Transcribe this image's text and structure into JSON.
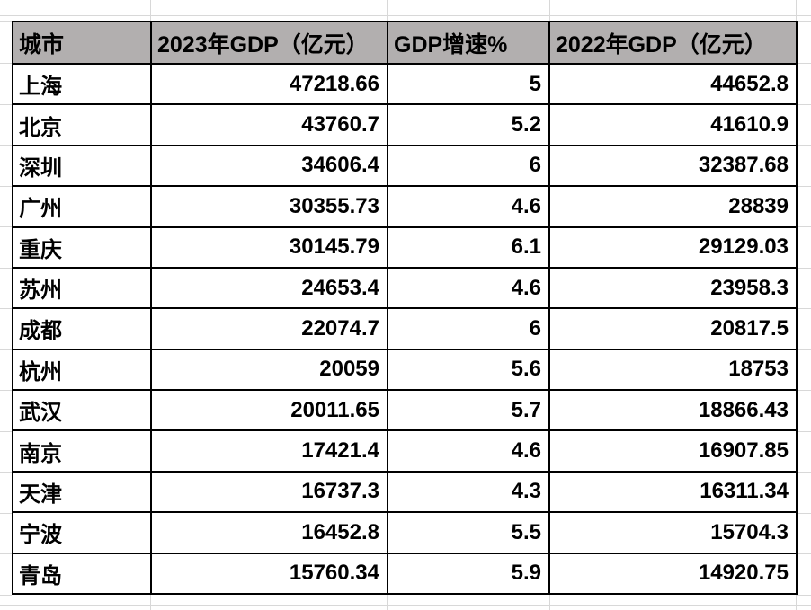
{
  "table": {
    "headers": [
      "城市",
      "2023年GDP（亿元）",
      "GDP增速%",
      "2022年GDP（亿元）"
    ],
    "rows": [
      {
        "city": "上海",
        "gdp2023": "47218.66",
        "growth": "5",
        "gdp2022": "44652.8"
      },
      {
        "city": "北京",
        "gdp2023": "43760.7",
        "growth": "5.2",
        "gdp2022": "41610.9"
      },
      {
        "city": "深圳",
        "gdp2023": "34606.4",
        "growth": "6",
        "gdp2022": "32387.68"
      },
      {
        "city": "广州",
        "gdp2023": "30355.73",
        "growth": "4.6",
        "gdp2022": "28839"
      },
      {
        "city": "重庆",
        "gdp2023": "30145.79",
        "growth": "6.1",
        "gdp2022": "29129.03"
      },
      {
        "city": "苏州",
        "gdp2023": "24653.4",
        "growth": "4.6",
        "gdp2022": "23958.3"
      },
      {
        "city": "成都",
        "gdp2023": "22074.7",
        "growth": "6",
        "gdp2022": "20817.5"
      },
      {
        "city": "杭州",
        "gdp2023": "20059",
        "growth": "5.6",
        "gdp2022": "18753"
      },
      {
        "city": "武汉",
        "gdp2023": "20011.65",
        "growth": "5.7",
        "gdp2022": "18866.43"
      },
      {
        "city": "南京",
        "gdp2023": "17421.4",
        "growth": "4.6",
        "gdp2022": "16907.85"
      },
      {
        "city": "天津",
        "gdp2023": "16737.3",
        "growth": "4.3",
        "gdp2022": "16311.34"
      },
      {
        "city": "宁波",
        "gdp2023": "16452.8",
        "growth": "5.5",
        "gdp2022": "15704.3"
      },
      {
        "city": "青岛",
        "gdp2023": "15760.34",
        "growth": "5.9",
        "gdp2022": "14920.75"
      }
    ]
  },
  "colors": {
    "header_bg": "#b2afaf",
    "table_border": "#000000",
    "gridline": "#d8d8d8",
    "text": "#000000"
  }
}
